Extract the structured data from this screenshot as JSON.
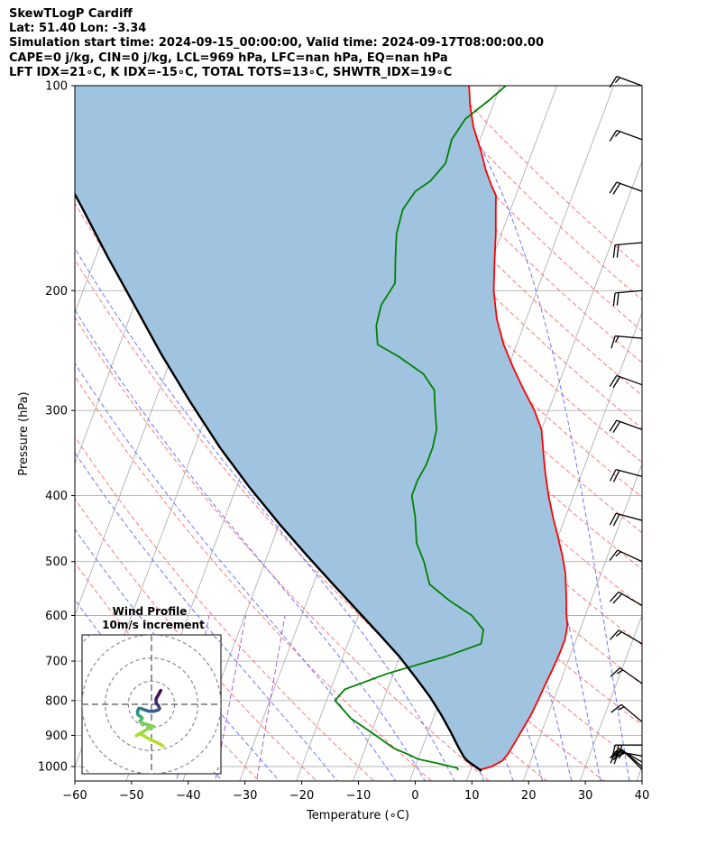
{
  "header": {
    "line1": "SkewTLogP Cardiff",
    "line2": "Lat: 51.40   Lon: -3.34",
    "line3": "Simulation start time: 2024-09-15_00:00:00, Valid time: 2024-09-17T08:00:00.00",
    "line4": "CAPE=0 j/kg, CIN=0 j/kg, LCL=969 hPa, LFC=nan hPa, EQ=nan hPa",
    "line5": "LFT IDX=21∘C, K IDX=-15∘C, TOTAL TOTS=13∘C, SHWTR_IDX=19∘C"
  },
  "colors": {
    "temperature": "#ff0000",
    "dewpoint": "#008000",
    "parcel": "#000000",
    "cape_fill": "#a0c4e0",
    "dry_adiabat": "#ff6060",
    "moist_adiabat": "#5060ff",
    "mixing_ratio": "#9040c0",
    "isotherm": "#b0b0b0",
    "isobar": "#b0b0b0"
  },
  "chart_data": {
    "type": "line",
    "title": "",
    "xlabel": "Temperature (∘C)",
    "ylabel": "Pressure (hPa)",
    "xlim": [
      -60,
      40
    ],
    "ylim": [
      1050,
      100
    ],
    "y_scale": "log",
    "skew_deg_per_decade": 45,
    "x_ticks": [
      -60,
      -50,
      -40,
      -30,
      -20,
      -10,
      0,
      10,
      20,
      30,
      40
    ],
    "y_ticks": [
      100,
      200,
      300,
      400,
      500,
      600,
      700,
      800,
      900,
      1000
    ],
    "grid": true,
    "series": [
      {
        "key": "temperature",
        "points": [
          [
            11.5,
            1012
          ],
          [
            13.5,
            1000
          ],
          [
            15,
            980
          ],
          [
            15.5,
            960
          ],
          [
            16,
            920
          ],
          [
            16.5,
            880
          ],
          [
            17,
            840
          ],
          [
            17.3,
            800
          ],
          [
            17.5,
            760
          ],
          [
            17.8,
            720
          ],
          [
            18,
            680
          ],
          [
            18,
            650
          ],
          [
            17.5,
            620
          ],
          [
            16.7,
            600
          ],
          [
            15.3,
            560
          ],
          [
            13.7,
            520
          ],
          [
            12,
            490
          ],
          [
            10,
            460
          ],
          [
            7.8,
            430
          ],
          [
            5.6,
            400
          ],
          [
            3.5,
            370
          ],
          [
            1.8,
            345
          ],
          [
            0,
            320
          ],
          [
            -2.5,
            300
          ],
          [
            -5.7,
            280
          ],
          [
            -9,
            260
          ],
          [
            -12.3,
            240
          ],
          [
            -15.2,
            220
          ],
          [
            -17.6,
            200
          ],
          [
            -19.5,
            180
          ],
          [
            -21,
            165
          ],
          [
            -22.6,
            152
          ],
          [
            -23.5,
            145
          ],
          [
            -25,
            140
          ],
          [
            -27,
            133
          ],
          [
            -29,
            125
          ],
          [
            -32,
            115
          ],
          [
            -34,
            107
          ],
          [
            -35.5,
            100
          ]
        ]
      },
      {
        "key": "dewpoint",
        "points": [
          [
            7.8,
            1012
          ],
          [
            7.5,
            1005
          ],
          [
            4,
            990
          ],
          [
            0,
            975
          ],
          [
            -2,
            960
          ],
          [
            -5,
            940
          ],
          [
            -9,
            900
          ],
          [
            -14.5,
            850
          ],
          [
            -18.5,
            800
          ],
          [
            -17.5,
            770
          ],
          [
            -11,
            730
          ],
          [
            -2,
            690
          ],
          [
            3.5,
            660
          ],
          [
            3,
            630
          ],
          [
            0,
            600
          ],
          [
            -5,
            570
          ],
          [
            -9.5,
            540
          ],
          [
            -12,
            500
          ],
          [
            -14.5,
            470
          ],
          [
            -16.5,
            430
          ],
          [
            -18.5,
            400
          ],
          [
            -18.5,
            380
          ],
          [
            -18,
            360
          ],
          [
            -18,
            340
          ],
          [
            -18.5,
            320
          ],
          [
            -20,
            300
          ],
          [
            -21.5,
            280
          ],
          [
            -24.5,
            265
          ],
          [
            -30,
            250
          ],
          [
            -34.5,
            240
          ],
          [
            -36,
            225
          ],
          [
            -36.5,
            210
          ],
          [
            -35.5,
            195
          ],
          [
            -37,
            180
          ],
          [
            -38.5,
            165
          ],
          [
            -39,
            152
          ],
          [
            -38,
            143
          ],
          [
            -36,
            138
          ],
          [
            -34.5,
            130
          ],
          [
            -35,
            120
          ],
          [
            -34,
            112
          ],
          [
            -31,
            105
          ],
          [
            -29,
            100
          ]
        ]
      },
      {
        "key": "parcel",
        "points": [
          [
            12,
            1015
          ],
          [
            8.9,
            982
          ],
          [
            8,
            969
          ],
          [
            6.5,
            940
          ],
          [
            4,
            890
          ],
          [
            1.2,
            840
          ],
          [
            -2,
            790
          ],
          [
            -5.8,
            740
          ],
          [
            -10,
            690
          ],
          [
            -15,
            640
          ],
          [
            -20.5,
            590
          ],
          [
            -26.5,
            540
          ],
          [
            -33,
            490
          ],
          [
            -40,
            440
          ],
          [
            -47.5,
            390
          ],
          [
            -55.5,
            340
          ],
          [
            -64,
            290
          ],
          [
            -72,
            248
          ],
          [
            -80,
            210
          ],
          [
            -88,
            178
          ],
          [
            -96,
            150
          ],
          [
            -104,
            127
          ],
          [
            -111,
            110
          ],
          [
            -116,
            100
          ]
        ]
      }
    ],
    "dry_adiabats_theta_c": [
      -30,
      -20,
      -10,
      0,
      10,
      20,
      30,
      40,
      50,
      60,
      70,
      80,
      90,
      100,
      110,
      120,
      130,
      140,
      150,
      160,
      170,
      180
    ],
    "moist_adiabat_ref_t_c": [
      -30,
      -20,
      -10,
      0,
      5,
      10,
      15,
      20,
      25,
      30,
      35,
      40
    ],
    "mixing_ratio_lines_gkg": [
      0.1,
      0.2,
      0.4
    ],
    "wind_barbs": [
      {
        "p": 100,
        "speed_kt": 15,
        "dir_deg": 290
      },
      {
        "p": 120,
        "speed_kt": 15,
        "dir_deg": 290
      },
      {
        "p": 143,
        "speed_kt": 20,
        "dir_deg": 290
      },
      {
        "p": 170,
        "speed_kt": 20,
        "dir_deg": 265
      },
      {
        "p": 200,
        "speed_kt": 20,
        "dir_deg": 265
      },
      {
        "p": 235,
        "speed_kt": 15,
        "dir_deg": 275
      },
      {
        "p": 275,
        "speed_kt": 20,
        "dir_deg": 290
      },
      {
        "p": 320,
        "speed_kt": 20,
        "dir_deg": 290
      },
      {
        "p": 375,
        "speed_kt": 20,
        "dir_deg": 285
      },
      {
        "p": 435,
        "speed_kt": 20,
        "dir_deg": 285
      },
      {
        "p": 500,
        "speed_kt": 15,
        "dir_deg": 295
      },
      {
        "p": 580,
        "speed_kt": 20,
        "dir_deg": 300
      },
      {
        "p": 660,
        "speed_kt": 15,
        "dir_deg": 300
      },
      {
        "p": 755,
        "speed_kt": 15,
        "dir_deg": 305
      },
      {
        "p": 860,
        "speed_kt": 15,
        "dir_deg": 310
      },
      {
        "p": 930,
        "speed_kt": 25,
        "dir_deg": 270
      },
      {
        "p": 965,
        "speed_kt": 25,
        "dir_deg": 280
      },
      {
        "p": 985,
        "speed_kt": 25,
        "dir_deg": 300
      },
      {
        "p": 1000,
        "speed_kt": 20,
        "dir_deg": 310
      },
      {
        "p": 1010,
        "speed_kt": 15,
        "dir_deg": 315
      }
    ],
    "hodograph": {
      "title_line1": "Wind Profile",
      "title_line2": "10m/s increment",
      "ring_step_ms": 10,
      "range_ms": 30,
      "points_uv": [
        [
          4,
          -3
        ],
        [
          3,
          -6
        ],
        [
          2,
          -9
        ],
        [
          2,
          -12
        ],
        [
          3,
          -14
        ],
        [
          3.5,
          -16
        ],
        [
          3,
          -17
        ],
        [
          1,
          -18
        ],
        [
          -1,
          -18
        ],
        [
          -3,
          -17
        ],
        [
          -4.5,
          -16
        ],
        [
          -5.5,
          -16
        ],
        [
          -6,
          -18
        ],
        [
          -6,
          -20
        ],
        [
          -5.5,
          -21
        ],
        [
          -4.5,
          -22
        ],
        [
          -4,
          -23
        ],
        [
          -4.5,
          -24
        ],
        [
          -5,
          -25
        ],
        [
          -4.5,
          -26
        ],
        [
          -3,
          -27
        ],
        [
          -1,
          -28
        ],
        [
          1,
          -29
        ],
        [
          -2,
          -31
        ],
        [
          -4,
          -33
        ],
        [
          -5,
          -34
        ],
        [
          -6,
          -35
        ],
        [
          -6.5,
          -35.5
        ],
        [
          -5,
          -34
        ],
        [
          -1,
          -38
        ],
        [
          3,
          -41
        ],
        [
          5,
          -43
        ]
      ]
    }
  }
}
